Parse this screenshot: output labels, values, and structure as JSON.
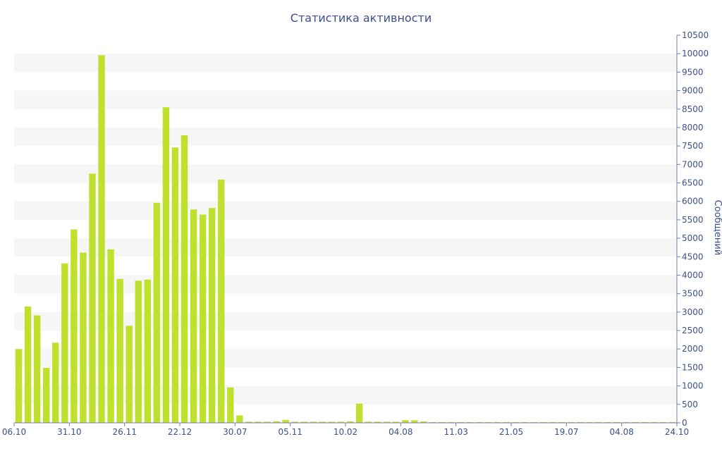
{
  "chart_data": {
    "type": "bar",
    "title": "Статистика активности",
    "ylabel": "Сообщений",
    "ylim": [
      0,
      10500
    ],
    "y_ticks": [
      0,
      500,
      1000,
      1500,
      2000,
      2500,
      3000,
      3500,
      4000,
      4500,
      5000,
      5500,
      6000,
      6500,
      7000,
      7500,
      8000,
      8500,
      9000,
      9500,
      10000,
      10500
    ],
    "x_tick_labels": [
      "06.10",
      "31.10",
      "26.11",
      "22.12",
      "30.07",
      "05.11",
      "10.02",
      "04.08",
      "11.03",
      "21.05",
      "19.07",
      "04.08",
      "24.10"
    ],
    "values": [
      2000,
      3150,
      2910,
      1490,
      2170,
      4320,
      5240,
      4610,
      6750,
      9960,
      4700,
      3900,
      2630,
      3850,
      3880,
      5960,
      8550,
      7460,
      7790,
      5780,
      5640,
      5820,
      6590,
      960,
      200,
      30,
      30,
      30,
      40,
      80,
      30,
      30,
      30,
      30,
      30,
      30,
      40,
      520,
      30,
      30,
      30,
      30,
      70,
      70,
      40,
      20,
      20,
      20,
      20,
      20,
      20,
      20,
      20,
      20,
      20,
      20,
      20,
      20,
      20,
      20,
      20,
      20,
      20,
      20,
      20,
      20,
      20,
      20,
      20,
      20,
      20,
      20
    ],
    "grid": "alternating horizontal bands",
    "legend": "none",
    "colors": {
      "bar": "#bfe12e",
      "text": "#3e4f8d",
      "axis": "#6f7fb4",
      "band": "#f6f6f6"
    }
  }
}
